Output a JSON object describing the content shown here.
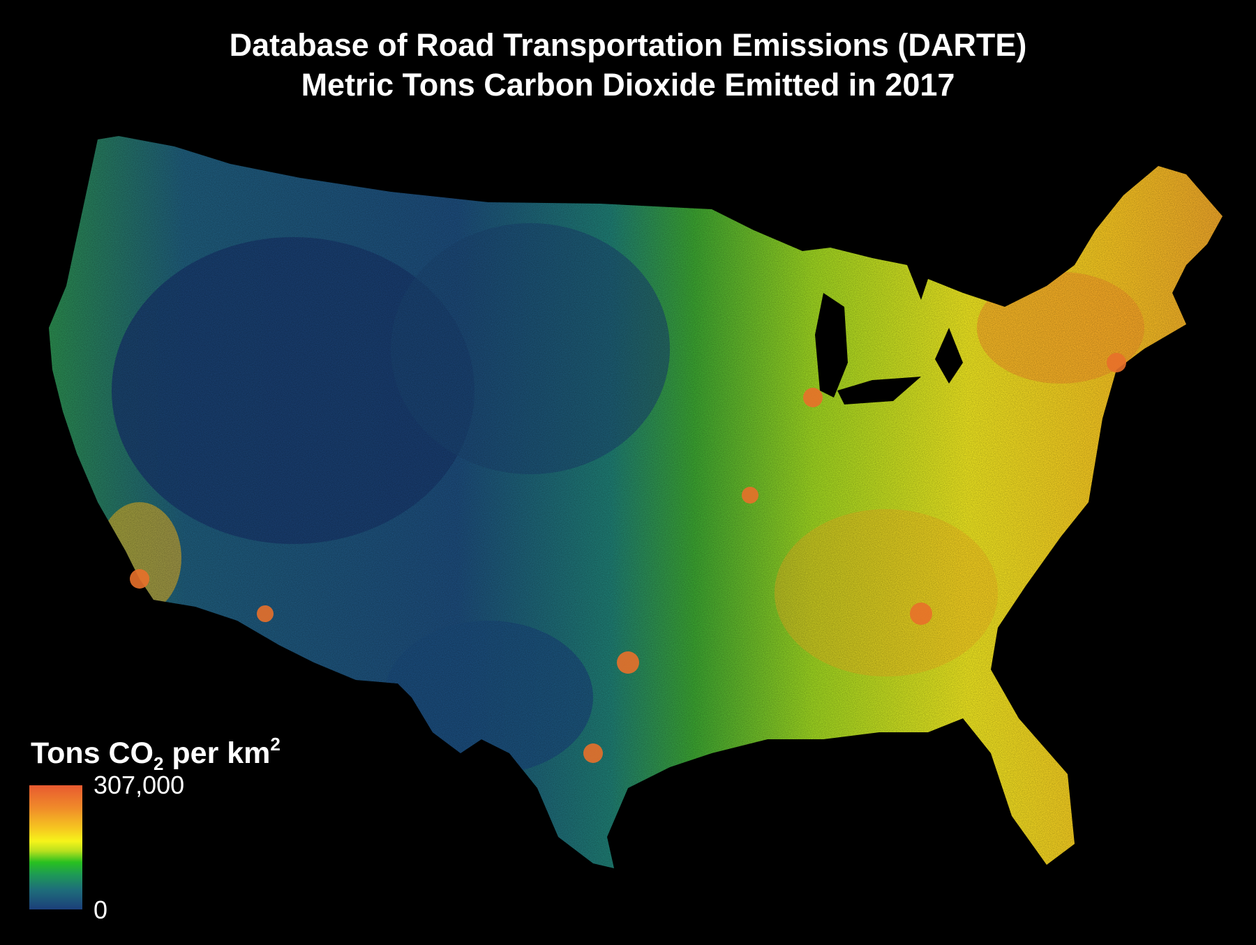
{
  "title": {
    "line1": "Database of Road Transportation Emissions (DARTE)",
    "line2": "Metric Tons Carbon Dioxide Emitted in 2017"
  },
  "legend": {
    "title_prefix": "Tons CO",
    "title_sub": "2",
    "title_mid": " per km",
    "title_sup": "2",
    "max_label": "307,000",
    "min_label": "0",
    "colors": [
      "#1c3f7a",
      "#1e6e7a",
      "#1e9a55",
      "#28c020",
      "#b8e01e",
      "#f6f41a",
      "#f6c820",
      "#f08a2a",
      "#e85a30"
    ]
  },
  "map": {
    "region": "Contiguous United States",
    "background": "#000000",
    "low_color": "#1c3f7a",
    "mid_color": "#28c020",
    "high_color": "#e85a30"
  }
}
